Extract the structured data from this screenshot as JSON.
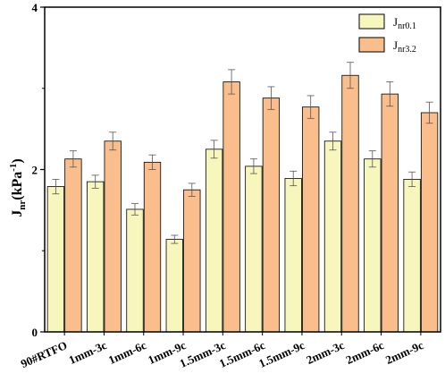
{
  "chart_data": {
    "type": "bar",
    "categories": [
      "90#RTFO",
      "1mm-3c",
      "1mm-6c",
      "1mm-9c",
      "1.5mm-3c",
      "1.5mm-6c",
      "1.5mm-9c",
      "2mm-3c",
      "2mm-6c",
      "2mm-9c"
    ],
    "series": [
      {
        "name_main": "J",
        "name_sub": "nr0.1",
        "color": "#f7f7bd",
        "values": [
          1.79,
          1.85,
          1.51,
          1.14,
          2.25,
          2.04,
          1.89,
          2.35,
          2.13,
          1.88
        ],
        "errors": [
          0.09,
          0.08,
          0.07,
          0.05,
          0.11,
          0.09,
          0.09,
          0.11,
          0.1,
          0.09
        ]
      },
      {
        "name_main": "J",
        "name_sub": "nr3.2",
        "color": "#f9be8c",
        "values": [
          2.13,
          2.35,
          2.09,
          1.75,
          3.08,
          2.88,
          2.77,
          3.16,
          2.93,
          2.7
        ],
        "errors": [
          0.1,
          0.11,
          0.09,
          0.08,
          0.15,
          0.14,
          0.14,
          0.16,
          0.15,
          0.13
        ]
      }
    ],
    "ylabel_main": "J",
    "ylabel_sub": "nr",
    "ylabel_unit_prefix": "(kPa",
    "ylabel_unit_exp": "-1",
    "ylabel_unit_suffix": ")",
    "ylim": [
      0,
      4
    ],
    "yticks": [
      0,
      2,
      4
    ],
    "legend_position": "top-right",
    "grid": false
  }
}
